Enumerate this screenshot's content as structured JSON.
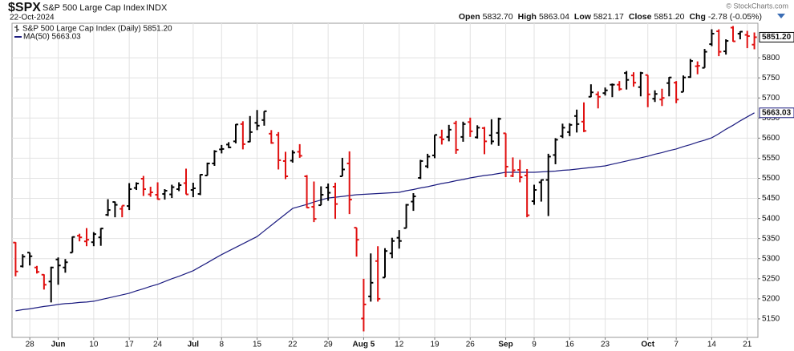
{
  "chart_data": {
    "type": "ohlc",
    "symbol": "$SPX",
    "title": "S&P 500 Large Cap Index",
    "exchange": "INDX",
    "date": "22-Oct-2024",
    "copyright": "© StockCharts.com",
    "quote": [
      {
        "label": "Open",
        "value": "5832.70"
      },
      {
        "label": "High",
        "value": "5863.04"
      },
      {
        "label": "Low",
        "value": "5821.17"
      },
      {
        "label": "Close",
        "value": "5851.20"
      },
      {
        "label": "Chg",
        "value": "-2.78 (-0.05%)"
      }
    ],
    "last_label": "5851.20",
    "ma_label": "5663.03",
    "categories": [
      null,
      null,
      "28",
      null,
      null,
      null,
      "Jun",
      null,
      null,
      null,
      null,
      "10",
      null,
      null,
      null,
      null,
      "17",
      null,
      null,
      null,
      "24",
      null,
      null,
      null,
      null,
      "Jul",
      null,
      null,
      null,
      "8",
      null,
      null,
      null,
      null,
      "15",
      null,
      null,
      null,
      null,
      "22",
      null,
      null,
      null,
      null,
      "29",
      null,
      null,
      null,
      null,
      "Aug 5",
      null,
      null,
      null,
      null,
      "12",
      null,
      null,
      null,
      null,
      "19",
      null,
      null,
      null,
      null,
      "26",
      null,
      null,
      null,
      null,
      "Sep",
      null,
      null,
      null,
      "9",
      null,
      null,
      null,
      null,
      "16",
      null,
      null,
      null,
      null,
      "23",
      null,
      null,
      null,
      null,
      null,
      "Oct",
      null,
      null,
      null,
      "7",
      null,
      null,
      null,
      null,
      "14",
      null,
      null,
      null,
      null,
      "21",
      null
    ],
    "ylim": [
      5104,
      5886
    ],
    "yticks": [
      5150,
      5200,
      5250,
      5300,
      5350,
      5400,
      5450,
      5500,
      5550,
      5600,
      5650,
      5700,
      5750,
      5800
    ],
    "grid": true,
    "series": [
      {
        "name": "S&P 500 Large Cap Index (Daily) 5851.20",
        "type": "ohlc",
        "up_color": "#000000",
        "down_color": "#e01010",
        "open": [
          5340,
          5281,
          5315,
          5278,
          5260,
          5243,
          5298,
          5278,
          5315,
          5357,
          5343,
          5341,
          5353,
          5409,
          5441,
          5424,
          5431,
          5476,
          5499,
          5460,
          5459,
          5461,
          5460,
          5473,
          5488,
          5471,
          5461,
          5507,
          5537,
          5572,
          5584,
          5592,
          5635,
          5591,
          5638,
          5645,
          5611,
          5608,
          5543,
          5544,
          5566,
          5505,
          5429,
          5433,
          5477,
          5479,
          5505,
          5537,
          5377,
          5151,
          5206,
          5294,
          5253,
          5313,
          5352,
          5376,
          5442,
          5501,
          5530,
          5557,
          5602,
          5603,
          5637,
          5603,
          5640,
          5602,
          5625,
          5607,
          5613,
          5612,
          5506,
          5521,
          5507,
          5443,
          5490,
          5496,
          5558,
          5605,
          5615,
          5655,
          5641,
          5703,
          5709,
          5712,
          5733,
          5733,
          5762,
          5756,
          5727,
          5757,
          5698,
          5696,
          5737,
          5738,
          5715,
          5752,
          5779,
          5775,
          5834,
          5866,
          5816,
          5875,
          5860,
          5857,
          5832.7
        ],
        "high": [
          5341,
          5311,
          5315,
          5282,
          5261,
          5280,
          5303,
          5299,
          5355,
          5362,
          5376,
          5366,
          5376,
          5448,
          5442,
          5432,
          5488,
          5490,
          5506,
          5479,
          5490,
          5473,
          5484,
          5490,
          5524,
          5489,
          5510,
          5539,
          5570,
          5583,
          5590,
          5635,
          5642,
          5655,
          5670,
          5667,
          5620,
          5615,
          5566,
          5570,
          5585,
          5508,
          5492,
          5480,
          5487,
          5489,
          5551,
          5567,
          5377,
          5250,
          5313,
          5331,
          5326,
          5352,
          5371,
          5436,
          5463,
          5546,
          5561,
          5608,
          5621,
          5633,
          5643,
          5641,
          5651,
          5632,
          5628,
          5647,
          5651,
          5612,
          5552,
          5546,
          5523,
          5484,
          5497,
          5561,
          5600,
          5636,
          5637,
          5671,
          5689,
          5734,
          5716,
          5726,
          5736,
          5742,
          5767,
          5764,
          5765,
          5757,
          5719,
          5723,
          5752,
          5742,
          5756,
          5797,
          5791,
          5822,
          5871,
          5871,
          5846,
          5879,
          5866,
          5867,
          5863.04
        ],
        "low": [
          5256,
          5278,
          5283,
          5263,
          5223,
          5191,
          5235,
          5265,
          5315,
          5343,
          5331,
          5331,
          5332,
          5406,
          5403,
          5403,
          5421,
          5471,
          5456,
          5454,
          5447,
          5447,
          5451,
          5468,
          5460,
          5453,
          5458,
          5507,
          5531,
          5562,
          5575,
          5587,
          5572,
          5590,
          5620,
          5631,
          5586,
          5522,
          5498,
          5539,
          5551,
          5426,
          5391,
          5433,
          5444,
          5399,
          5505,
          5411,
          5305,
          5119,
          5193,
          5193,
          5253,
          5301,
          5325,
          5376,
          5419,
          5498,
          5525,
          5550,
          5584,
          5592,
          5561,
          5591,
          5603,
          5599,
          5560,
          5584,
          5581,
          5503,
          5503,
          5490,
          5403,
          5434,
          5442,
          5406,
          5535,
          5600,
          5605,
          5614,
          5615,
          5702,
          5674,
          5706,
          5702,
          5718,
          5721,
          5728,
          5704,
          5677,
          5690,
          5680,
          5704,
          5687,
          5715,
          5750,
          5759,
          5775,
          5829,
          5804,
          5808,
          5840,
          5846,
          5824,
          5821.17
        ],
        "close": [
          5268,
          5305,
          5306,
          5267,
          5235,
          5278,
          5283,
          5291,
          5354,
          5353,
          5347,
          5361,
          5375,
          5421,
          5434,
          5432,
          5473,
          5487,
          5473,
          5465,
          5448,
          5469,
          5478,
          5483,
          5460,
          5475,
          5509,
          5537,
          5567,
          5573,
          5577,
          5634,
          5585,
          5615,
          5631,
          5667,
          5588,
          5545,
          5505,
          5564,
          5556,
          5427,
          5399,
          5459,
          5464,
          5436,
          5522,
          5447,
          5347,
          5186,
          5240,
          5200,
          5319,
          5344,
          5344,
          5434,
          5455,
          5543,
          5554,
          5608,
          5597,
          5621,
          5571,
          5635,
          5617,
          5626,
          5592,
          5592,
          5648,
          5529,
          5520,
          5503,
          5408,
          5471,
          5496,
          5554,
          5596,
          5626,
          5633,
          5635,
          5618,
          5714,
          5703,
          5719,
          5733,
          5722,
          5745,
          5738,
          5762,
          5709,
          5710,
          5700,
          5751,
          5696,
          5751,
          5792,
          5780,
          5815,
          5860,
          5815,
          5842,
          5841,
          5865,
          5854,
          5851.2
        ]
      },
      {
        "name": "MA(50) 5663.03",
        "type": "line",
        "color": "#1c1c80",
        "values": [
          5170,
          5173,
          5175,
          5178,
          5181,
          5183,
          5186,
          5188,
          5189,
          5191,
          5192,
          5194,
          5198,
          5202,
          5206,
          5210,
          5214,
          5220,
          5225,
          5231,
          5236,
          5243,
          5250,
          5256,
          5263,
          5270,
          5280,
          5290,
          5300,
          5310,
          5319,
          5328,
          5337,
          5346,
          5355,
          5369,
          5383,
          5397,
          5411,
          5425,
          5430,
          5435,
          5441,
          5446,
          5451,
          5453,
          5455,
          5457,
          5459,
          5460,
          5461,
          5462,
          5463,
          5464,
          5465,
          5469,
          5472,
          5476,
          5479,
          5483,
          5487,
          5490,
          5494,
          5497,
          5501,
          5504,
          5507,
          5509,
          5512,
          5515,
          5515,
          5515,
          5515,
          5515,
          5516,
          5517,
          5518,
          5520,
          5521,
          5523,
          5525,
          5527,
          5529,
          5531,
          5535,
          5539,
          5543,
          5547,
          5551,
          5555,
          5560,
          5564,
          5569,
          5573,
          5579,
          5584,
          5590,
          5595,
          5601,
          5611,
          5622,
          5632,
          5643,
          5653,
          5663.03
        ]
      }
    ]
  }
}
